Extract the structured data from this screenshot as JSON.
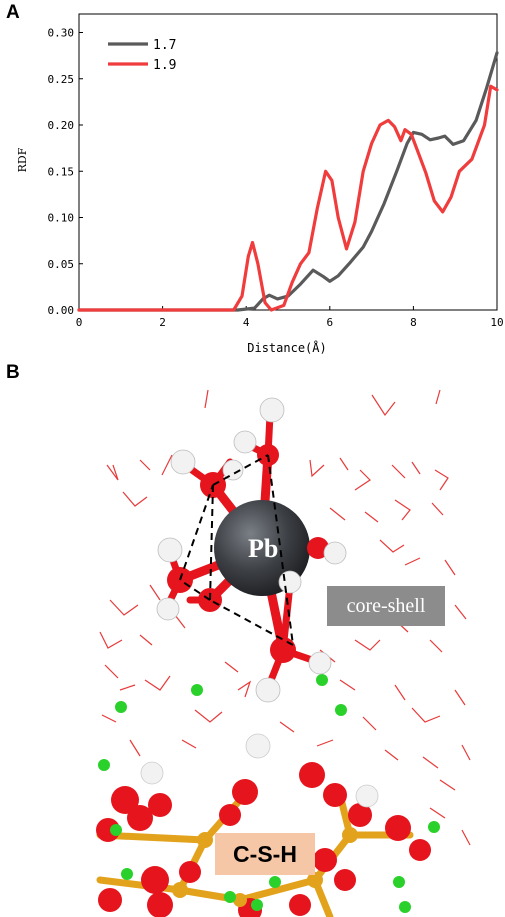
{
  "panels": {
    "a": "A",
    "b": "B"
  },
  "chart_data": {
    "type": "line",
    "title": "",
    "xlabel": "Distance(Å)",
    "ylabel": "RDF",
    "xlim": [
      0,
      10
    ],
    "ylim": [
      0,
      0.32
    ],
    "x_ticks": [
      "0",
      "2",
      "4",
      "6",
      "8",
      "10"
    ],
    "y_ticks": [
      "0.00",
      "0.05",
      "0.10",
      "0.15",
      "0.20",
      "0.25",
      "0.30"
    ],
    "legend_position": "top-left",
    "series": [
      {
        "name": "1.7",
        "color": "#5a5a5a",
        "points": [
          [
            0,
            0
          ],
          [
            3.8,
            0
          ],
          [
            4.2,
            0.002
          ],
          [
            4.4,
            0.012
          ],
          [
            4.55,
            0.016
          ],
          [
            4.75,
            0.012
          ],
          [
            5.0,
            0.015
          ],
          [
            5.3,
            0.028
          ],
          [
            5.6,
            0.043
          ],
          [
            5.85,
            0.036
          ],
          [
            6.0,
            0.031
          ],
          [
            6.2,
            0.037
          ],
          [
            6.5,
            0.052
          ],
          [
            6.8,
            0.068
          ],
          [
            7.0,
            0.085
          ],
          [
            7.3,
            0.115
          ],
          [
            7.6,
            0.15
          ],
          [
            7.85,
            0.18
          ],
          [
            8.0,
            0.192
          ],
          [
            8.2,
            0.19
          ],
          [
            8.4,
            0.184
          ],
          [
            8.6,
            0.186
          ],
          [
            8.75,
            0.188
          ],
          [
            8.95,
            0.179
          ],
          [
            9.2,
            0.183
          ],
          [
            9.5,
            0.205
          ],
          [
            9.75,
            0.24
          ],
          [
            10,
            0.278
          ]
        ]
      },
      {
        "name": "1.9",
        "color": "#f03c3c",
        "points": [
          [
            0,
            0
          ],
          [
            3.7,
            0
          ],
          [
            3.9,
            0.015
          ],
          [
            4.05,
            0.058
          ],
          [
            4.15,
            0.073
          ],
          [
            4.28,
            0.05
          ],
          [
            4.45,
            0.008
          ],
          [
            4.6,
            0
          ],
          [
            4.9,
            0.005
          ],
          [
            5.1,
            0.03
          ],
          [
            5.3,
            0.05
          ],
          [
            5.5,
            0.062
          ],
          [
            5.7,
            0.11
          ],
          [
            5.9,
            0.15
          ],
          [
            6.05,
            0.14
          ],
          [
            6.2,
            0.1
          ],
          [
            6.4,
            0.066
          ],
          [
            6.6,
            0.095
          ],
          [
            6.8,
            0.15
          ],
          [
            7.0,
            0.18
          ],
          [
            7.2,
            0.2
          ],
          [
            7.4,
            0.205
          ],
          [
            7.55,
            0.198
          ],
          [
            7.7,
            0.183
          ],
          [
            7.8,
            0.195
          ],
          [
            7.95,
            0.19
          ],
          [
            8.1,
            0.172
          ],
          [
            8.3,
            0.148
          ],
          [
            8.5,
            0.118
          ],
          [
            8.7,
            0.106
          ],
          [
            8.9,
            0.122
          ],
          [
            9.1,
            0.15
          ],
          [
            9.4,
            0.163
          ],
          [
            9.7,
            0.2
          ],
          [
            9.85,
            0.242
          ],
          [
            10,
            0.238
          ]
        ]
      }
    ]
  },
  "figure_b": {
    "center_atom": "Pb",
    "core_shell_label": "core-shell",
    "substrate_label": "C-S-H",
    "colors": {
      "pb": "#3d4045",
      "oxygen": "#e5141d",
      "hydrogen": "#f2f2f2",
      "silicon": "#e2a21c",
      "calcium": "#2bd12b",
      "water_lines": "#e83a3a"
    }
  }
}
